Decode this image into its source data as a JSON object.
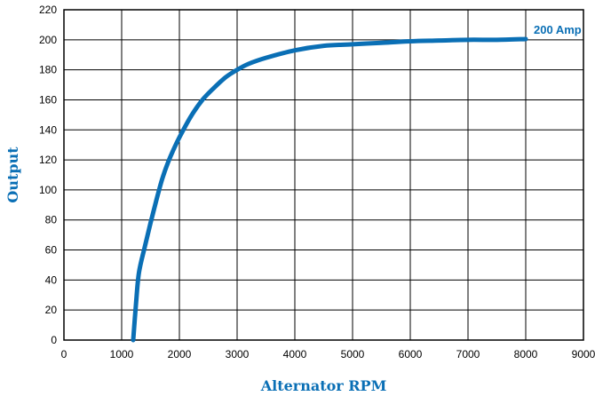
{
  "chart_data": {
    "type": "line",
    "xlabel": "Alternator RPM",
    "ylabel": "Output",
    "xlim": [
      0,
      9000
    ],
    "ylim": [
      0,
      220
    ],
    "xticks": [
      0,
      1000,
      2000,
      3000,
      4000,
      5000,
      6000,
      7000,
      8000,
      9000
    ],
    "yticks": [
      0,
      20,
      40,
      60,
      80,
      100,
      120,
      140,
      160,
      180,
      200,
      220
    ],
    "grid": true,
    "series": [
      {
        "name": "200 Amp",
        "color": "#0a6fb5",
        "x": [
          1200,
          1250,
          1300,
          1400,
          1500,
          1600,
          1700,
          1800,
          1900,
          2000,
          2200,
          2400,
          2600,
          2800,
          3000,
          3200,
          3500,
          4000,
          4500,
          5000,
          5500,
          6000,
          6500,
          7000,
          7500,
          8000
        ],
        "y": [
          0,
          25,
          45,
          62,
          78,
          93,
          107,
          118,
          127,
          135,
          149,
          160,
          168,
          175,
          180,
          184,
          188,
          193,
          196,
          197,
          198,
          199,
          199.5,
          200,
          200,
          200.5
        ]
      }
    ]
  }
}
